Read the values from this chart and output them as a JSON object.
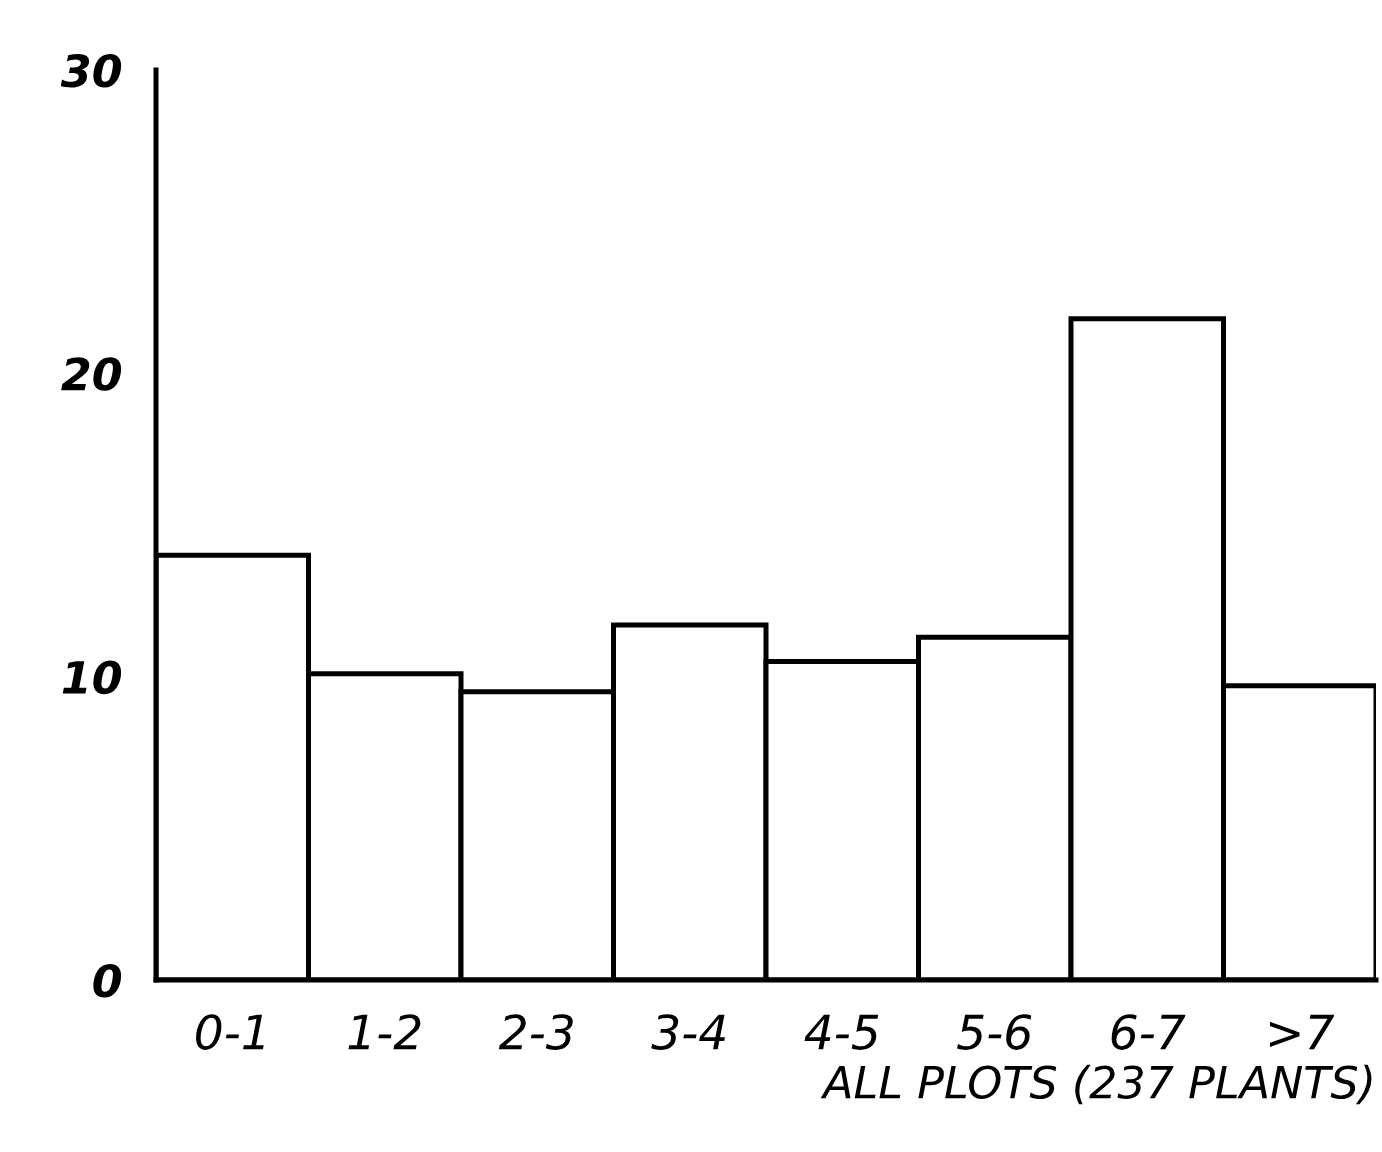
{
  "chart_data": {
    "type": "bar",
    "xlabel": "ALL PLOTS (237 PLANTS)",
    "categories": [
      "0-1",
      "1-2",
      "2-3",
      "3-4",
      "4-5",
      "5-6",
      "6-7",
      ">7"
    ],
    "values": [
      14.0,
      10.1,
      9.5,
      11.7,
      10.5,
      11.3,
      21.8,
      9.7
    ],
    "color": "#ffffff",
    "ylim": [
      0,
      30
    ],
    "yticks": [
      0,
      10,
      20,
      30
    ],
    "grid": false
  }
}
